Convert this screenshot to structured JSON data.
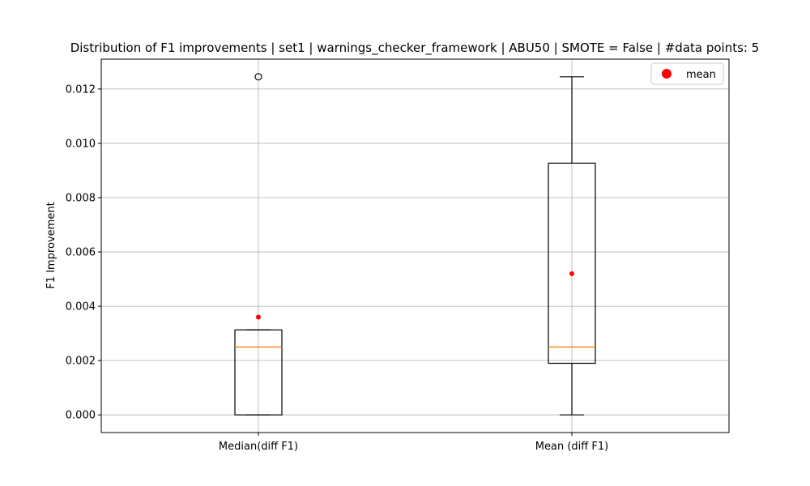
{
  "chart_data": {
    "type": "box",
    "title": "Distribution of F1 improvements | set1 | warnings_checker_framework | ABU50 | SMOTE = False | #data points: 5",
    "xlabel": "",
    "ylabel": "F1 Improvement",
    "ylim": [
      -0.00065,
      0.0131
    ],
    "yticks": [
      0.0,
      0.002,
      0.004,
      0.006,
      0.008,
      0.01,
      0.012
    ],
    "ytick_labels": [
      "0.000",
      "0.002",
      "0.004",
      "0.006",
      "0.008",
      "0.010",
      "0.012"
    ],
    "grid": true,
    "legend": {
      "position": "top-right",
      "entries": [
        {
          "label": "mean",
          "marker": "circle",
          "color": "#ff0000"
        }
      ]
    },
    "boxes": [
      {
        "label": "Median(diff F1)",
        "whisker_low": 0.0,
        "q1": 0.0,
        "median": 0.0025,
        "q3": 0.00313,
        "whisker_high": 0.00313,
        "mean": 0.0036,
        "fliers": [
          0.01245
        ]
      },
      {
        "label": "Mean (diff F1)",
        "whisker_low": 0.0,
        "q1": 0.0019,
        "median": 0.0025,
        "q3": 0.00927,
        "whisker_high": 0.01245,
        "mean": 0.0052,
        "fliers": []
      }
    ],
    "colors": {
      "box": "#000000",
      "median": "#ff7f0e",
      "mean": "#ff0000",
      "grid": "#b0b0b0"
    }
  }
}
